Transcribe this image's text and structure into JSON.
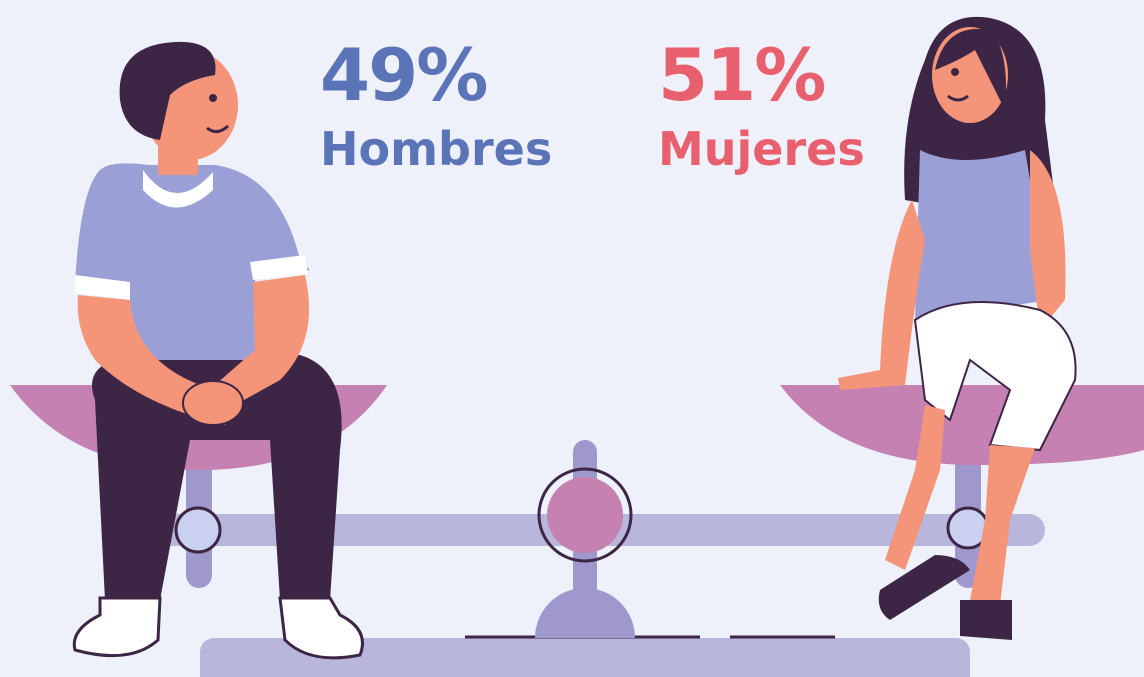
{
  "stats": [
    {
      "value": "49%",
      "label": "Hombres"
    },
    {
      "value": "51%",
      "label": "Mujeres"
    }
  ]
}
